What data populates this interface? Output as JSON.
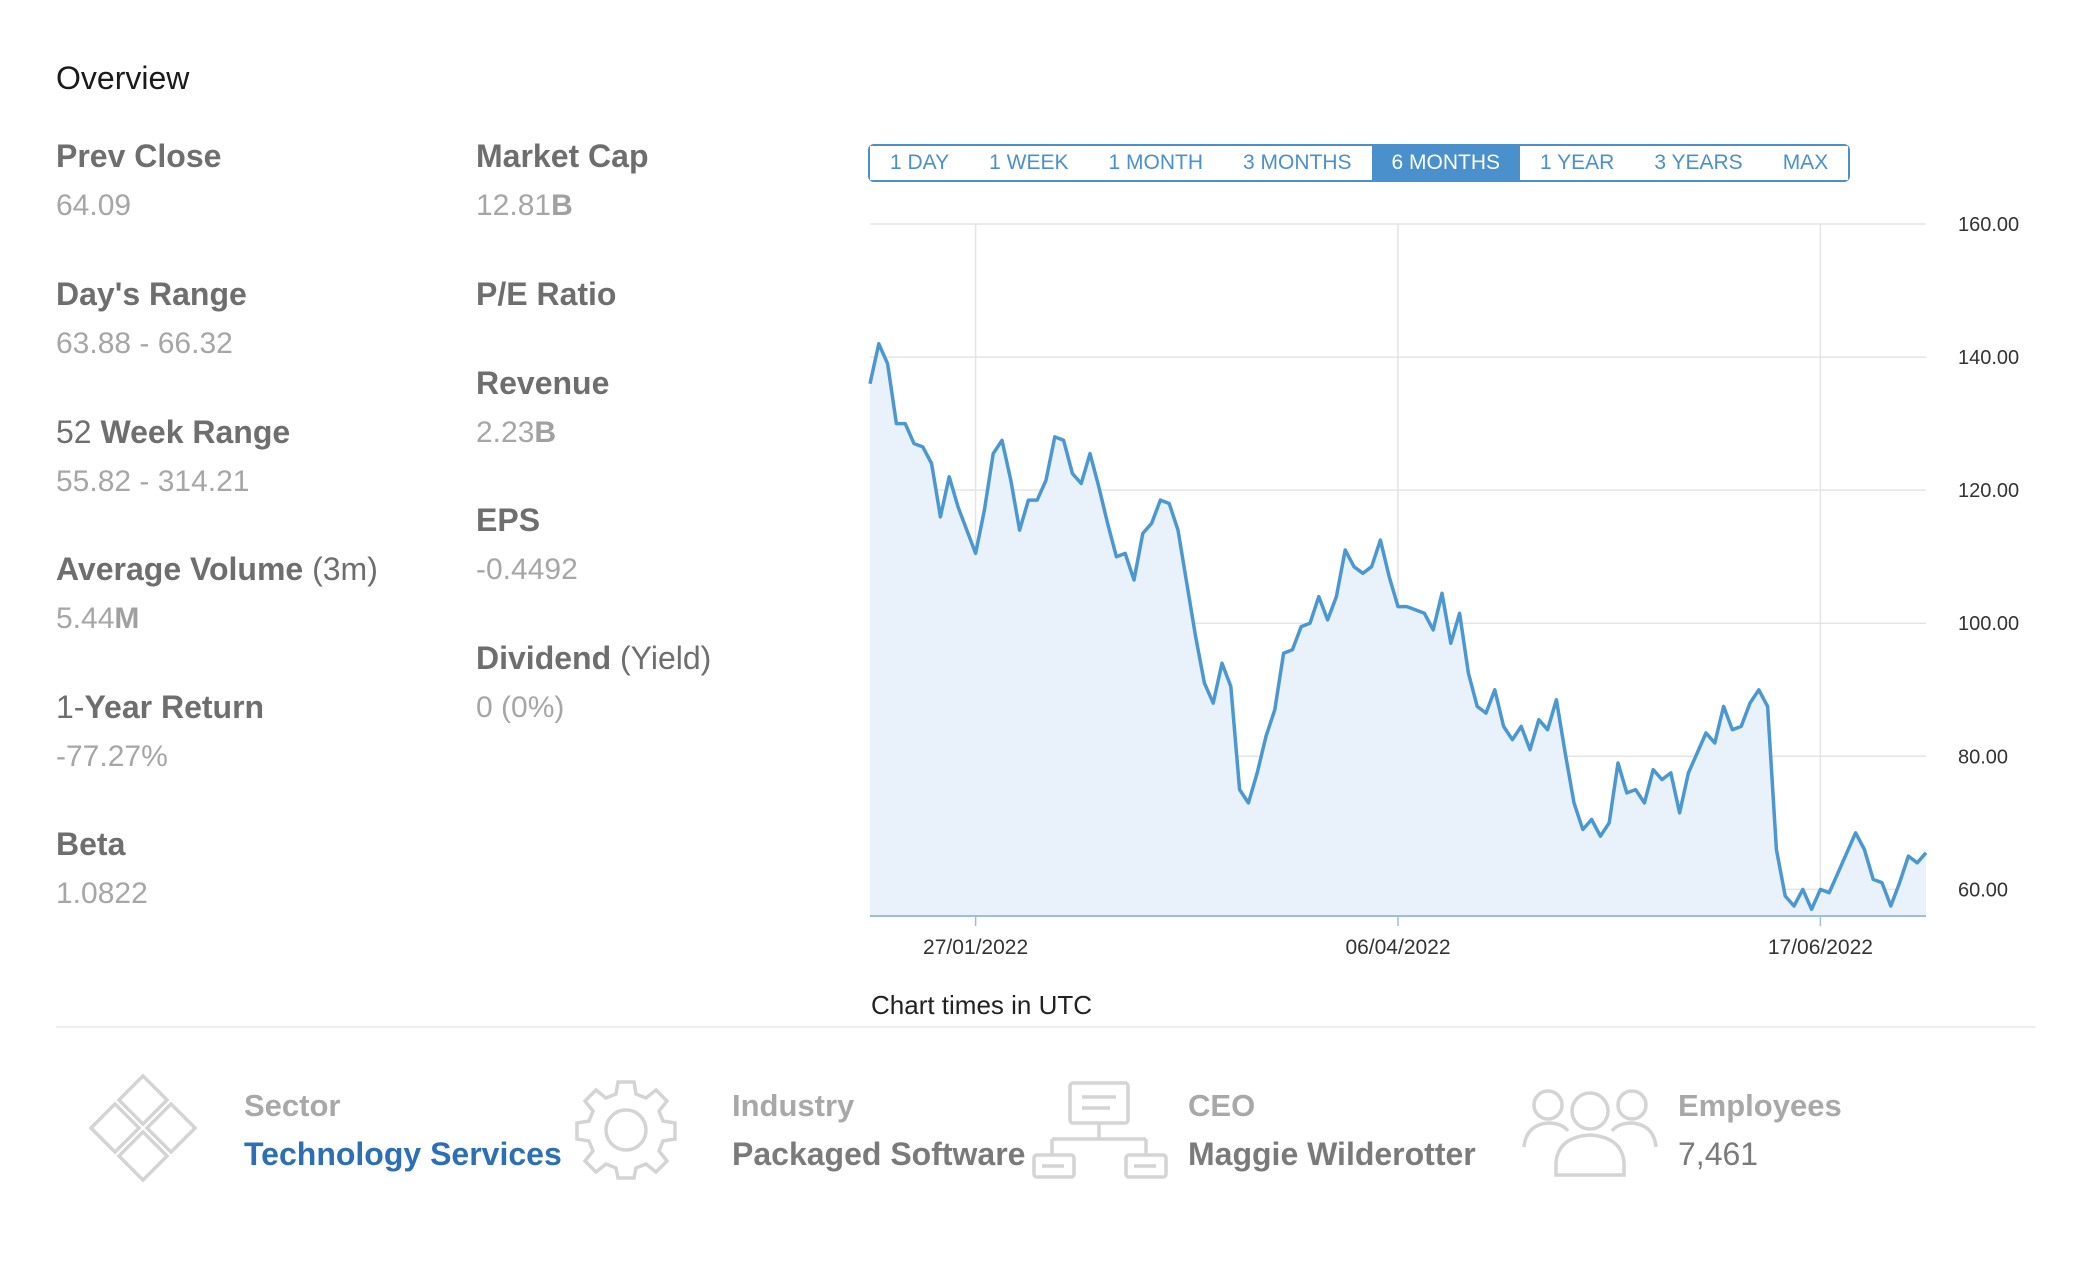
{
  "overview": {
    "title": "Overview"
  },
  "stats_left": [
    {
      "label": "Prev Close",
      "value": "64.09"
    },
    {
      "label": "Day's Range",
      "value": "63.88 - 66.32"
    },
    {
      "label_thin_prefix": "52 ",
      "label": "Week Range",
      "value": "55.82 - 314.21"
    },
    {
      "label": "Average Volume ",
      "label_thin_suffix": "(3m)",
      "value_num": "5.44",
      "value_unit": "M"
    },
    {
      "label_thin_prefix": "1-",
      "label": "Year Return",
      "value": "-77.27%"
    },
    {
      "label": "Beta",
      "value": "1.0822"
    }
  ],
  "stats_right": [
    {
      "label": "Market Cap",
      "value_num": "12.81",
      "value_unit": "B"
    },
    {
      "label": "P/E Ratio",
      "value": ""
    },
    {
      "label": "Revenue",
      "value_num": "2.23",
      "value_unit": "B"
    },
    {
      "label": "EPS",
      "value": "-0.4492"
    },
    {
      "label": "Dividend ",
      "label_thin_suffix": "(Yield)",
      "value": "0 (0%)"
    }
  ],
  "range_tabs": {
    "items": [
      "1 DAY",
      "1 WEEK",
      "1 MONTH",
      "3 MONTHS",
      "6 MONTHS",
      "1 YEAR",
      "3 YEARS",
      "MAX"
    ],
    "selected": "6 MONTHS"
  },
  "chart_note": "Chart times in UTC",
  "chart_data": {
    "type": "area",
    "ylim": [
      56,
      160
    ],
    "y_ticks": [
      "160.00",
      "140.00",
      "120.00",
      "100.00",
      "80.00",
      "60.00"
    ],
    "x_ticks": [
      "27/01/2022",
      "06/04/2022",
      "17/06/2022"
    ],
    "grid": true,
    "line_color": "#4a97d2",
    "fill_color": "#e9f2fa",
    "series": [
      {
        "values": [
          136,
          142,
          139,
          130,
          130,
          127,
          126.5,
          124,
          116,
          122,
          117.5,
          114,
          110.5,
          117,
          125.5,
          127.5,
          121.5,
          114,
          118.5,
          118.5,
          121.5,
          128,
          127.5,
          122.5,
          121,
          125.5,
          120.5,
          115,
          110,
          110.5,
          106.5,
          113.5,
          115,
          118.5,
          118,
          114,
          106,
          98,
          91,
          88,
          94,
          90.5,
          75,
          73,
          77.5,
          83,
          87,
          95.5,
          96,
          99.5,
          100,
          104,
          100.5,
          104,
          111,
          108.5,
          107.5,
          108.5,
          112.5,
          107,
          102.5,
          102.5,
          102,
          101.5,
          99,
          104.5,
          97,
          101.5,
          92.5,
          87.5,
          86.5,
          90,
          84.5,
          82.5,
          84.5,
          81,
          85.5,
          84,
          88.5,
          80.5,
          73,
          69,
          70.5,
          68,
          70,
          79,
          74.5,
          75,
          73,
          78,
          76.5,
          77.5,
          71.5,
          77.5,
          80.5,
          83.5,
          82,
          87.5,
          84,
          84.5,
          88,
          90,
          87.5,
          66,
          59,
          57.5,
          60,
          57,
          60,
          59.5,
          62.5,
          65.5,
          68.5,
          66,
          61.5,
          61,
          57.5,
          61,
          65,
          64,
          65.5
        ]
      }
    ]
  },
  "info_items": [
    {
      "icon": "sector-diamond-icon",
      "key": "Sector",
      "value": "Technology Services",
      "style": "link"
    },
    {
      "icon": "gear-icon",
      "key": "Industry",
      "value": "Packaged Software",
      "style": "bold"
    },
    {
      "icon": "org-chart-icon",
      "key": "CEO",
      "value": "Maggie Wilderotter",
      "style": "bold"
    },
    {
      "icon": "people-group-icon",
      "key": "Employees",
      "value": "7,461",
      "style": "plain"
    }
  ]
}
